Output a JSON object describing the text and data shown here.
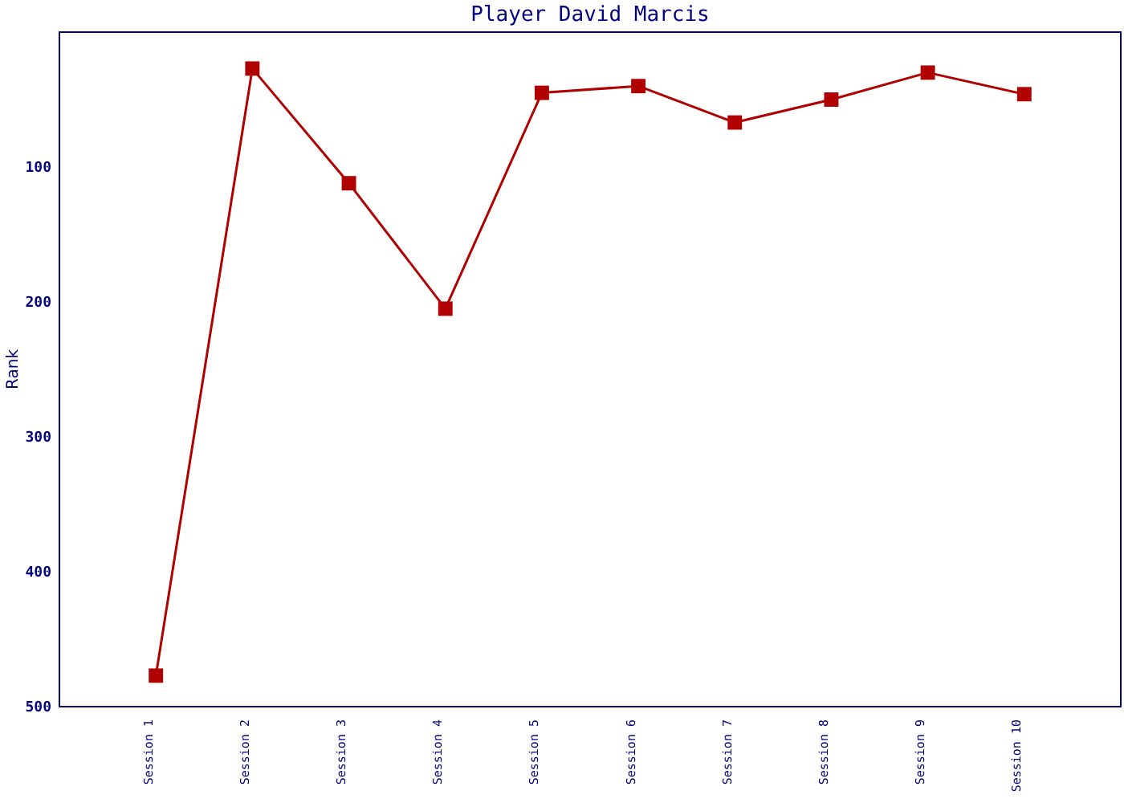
{
  "chart_data": {
    "type": "line",
    "title": "Player David Marcis",
    "ylabel": "Rank",
    "categories": [
      "Session 1",
      "Session 2",
      "Session 3",
      "Session 4",
      "Session 5",
      "Session 6",
      "Session 7",
      "Session 8",
      "Session 9",
      "Session 10"
    ],
    "series": [
      {
        "color": "#b00000",
        "values": [
          477,
          27,
          112,
          205,
          45,
          40,
          67,
          50,
          30,
          46
        ]
      }
    ],
    "ylim": [
      500,
      0
    ],
    "yticks": [
      100,
      200,
      300,
      400,
      500
    ],
    "grid": false,
    "marker": "square",
    "line_style": "solid"
  }
}
